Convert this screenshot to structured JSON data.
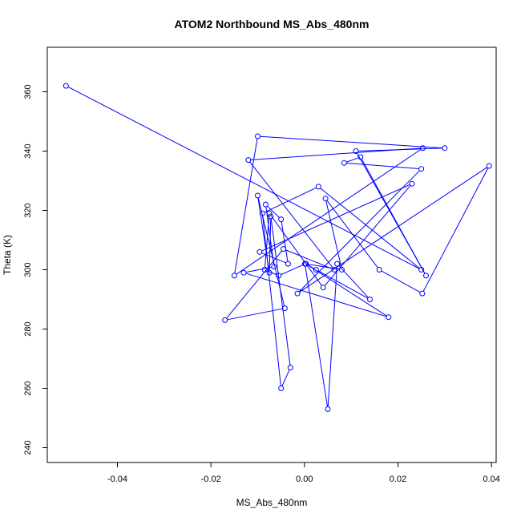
{
  "chart_data": {
    "type": "line",
    "title": "ATOM2 Northbound MS_Abs_480nm",
    "xlabel": "MS_Abs_480nm",
    "ylabel": "Theta (K)",
    "xlim": [
      -0.055,
      0.041
    ],
    "ylim": [
      235,
      375
    ],
    "xticks": [
      -0.04,
      -0.02,
      0.0,
      0.02,
      0.04
    ],
    "xtick_labels": [
      "-0.04",
      "-0.02",
      "0.00",
      "0.02",
      "0.04"
    ],
    "yticks": [
      240,
      260,
      280,
      300,
      320,
      340,
      360
    ],
    "ytick_labels": [
      "240",
      "260",
      "280",
      "300",
      "320",
      "340",
      "360"
    ],
    "grid": false,
    "series": [
      {
        "color": "#0000ff",
        "marker": "open-circle",
        "x": [
          -0.051,
          0.025,
          0.003,
          -0.009,
          -0.005,
          -0.003,
          -0.0072,
          -0.0075,
          -0.01,
          -0.0042,
          -0.017,
          -0.0045,
          0.0064,
          -0.012,
          0.0253,
          -0.015,
          -0.01,
          0.03,
          0.011,
          0.026,
          0.012,
          0.0085,
          0.025,
          -0.0015,
          0.0395,
          0.0252,
          0.016,
          0.0045,
          0.008,
          0.0002,
          -0.0055,
          -0.0085,
          -0.0075,
          0.004,
          0.023,
          -0.0096,
          -0.0035,
          -0.005,
          -0.0083,
          -0.0065,
          -0.013,
          0.018,
          0.0003,
          0.0025,
          0.014,
          0.007,
          0.005,
          0.0001
        ],
        "y": [
          362,
          300,
          328,
          319,
          260,
          267,
          318,
          299,
          325,
          287,
          283,
          307,
          300,
          337,
          341,
          298,
          345,
          341,
          340,
          298,
          338,
          336,
          334,
          292,
          335,
          292,
          300,
          324,
          300,
          302,
          298,
          300,
          319,
          294,
          329,
          306,
          302,
          317,
          322,
          301,
          299,
          284,
          302,
          300,
          290,
          302,
          253,
          302
        ]
      }
    ]
  }
}
